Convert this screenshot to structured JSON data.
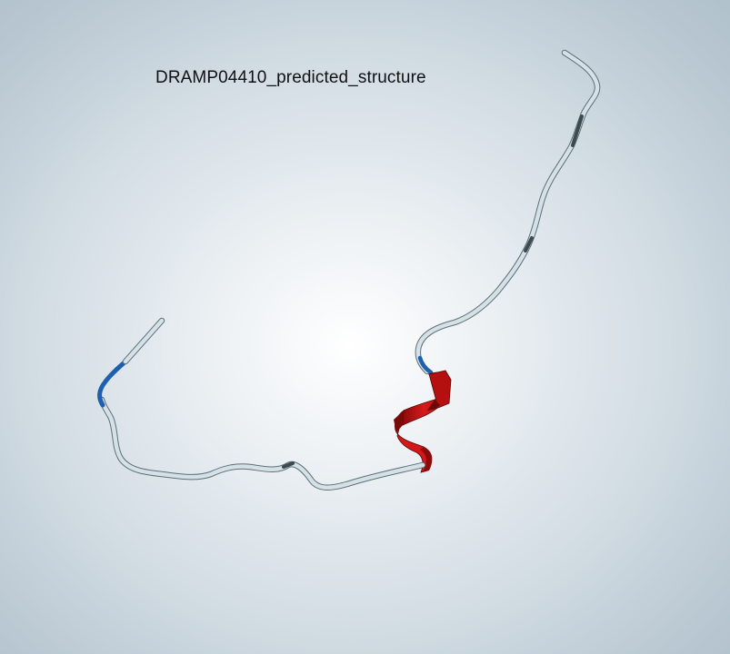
{
  "title": "DRAMP04410_predicted_structure",
  "colors": {
    "coil": "#d3e1e6",
    "turn": "#1f5fb0",
    "helix": "#c81212",
    "helix_dark": "#6e0808"
  }
}
